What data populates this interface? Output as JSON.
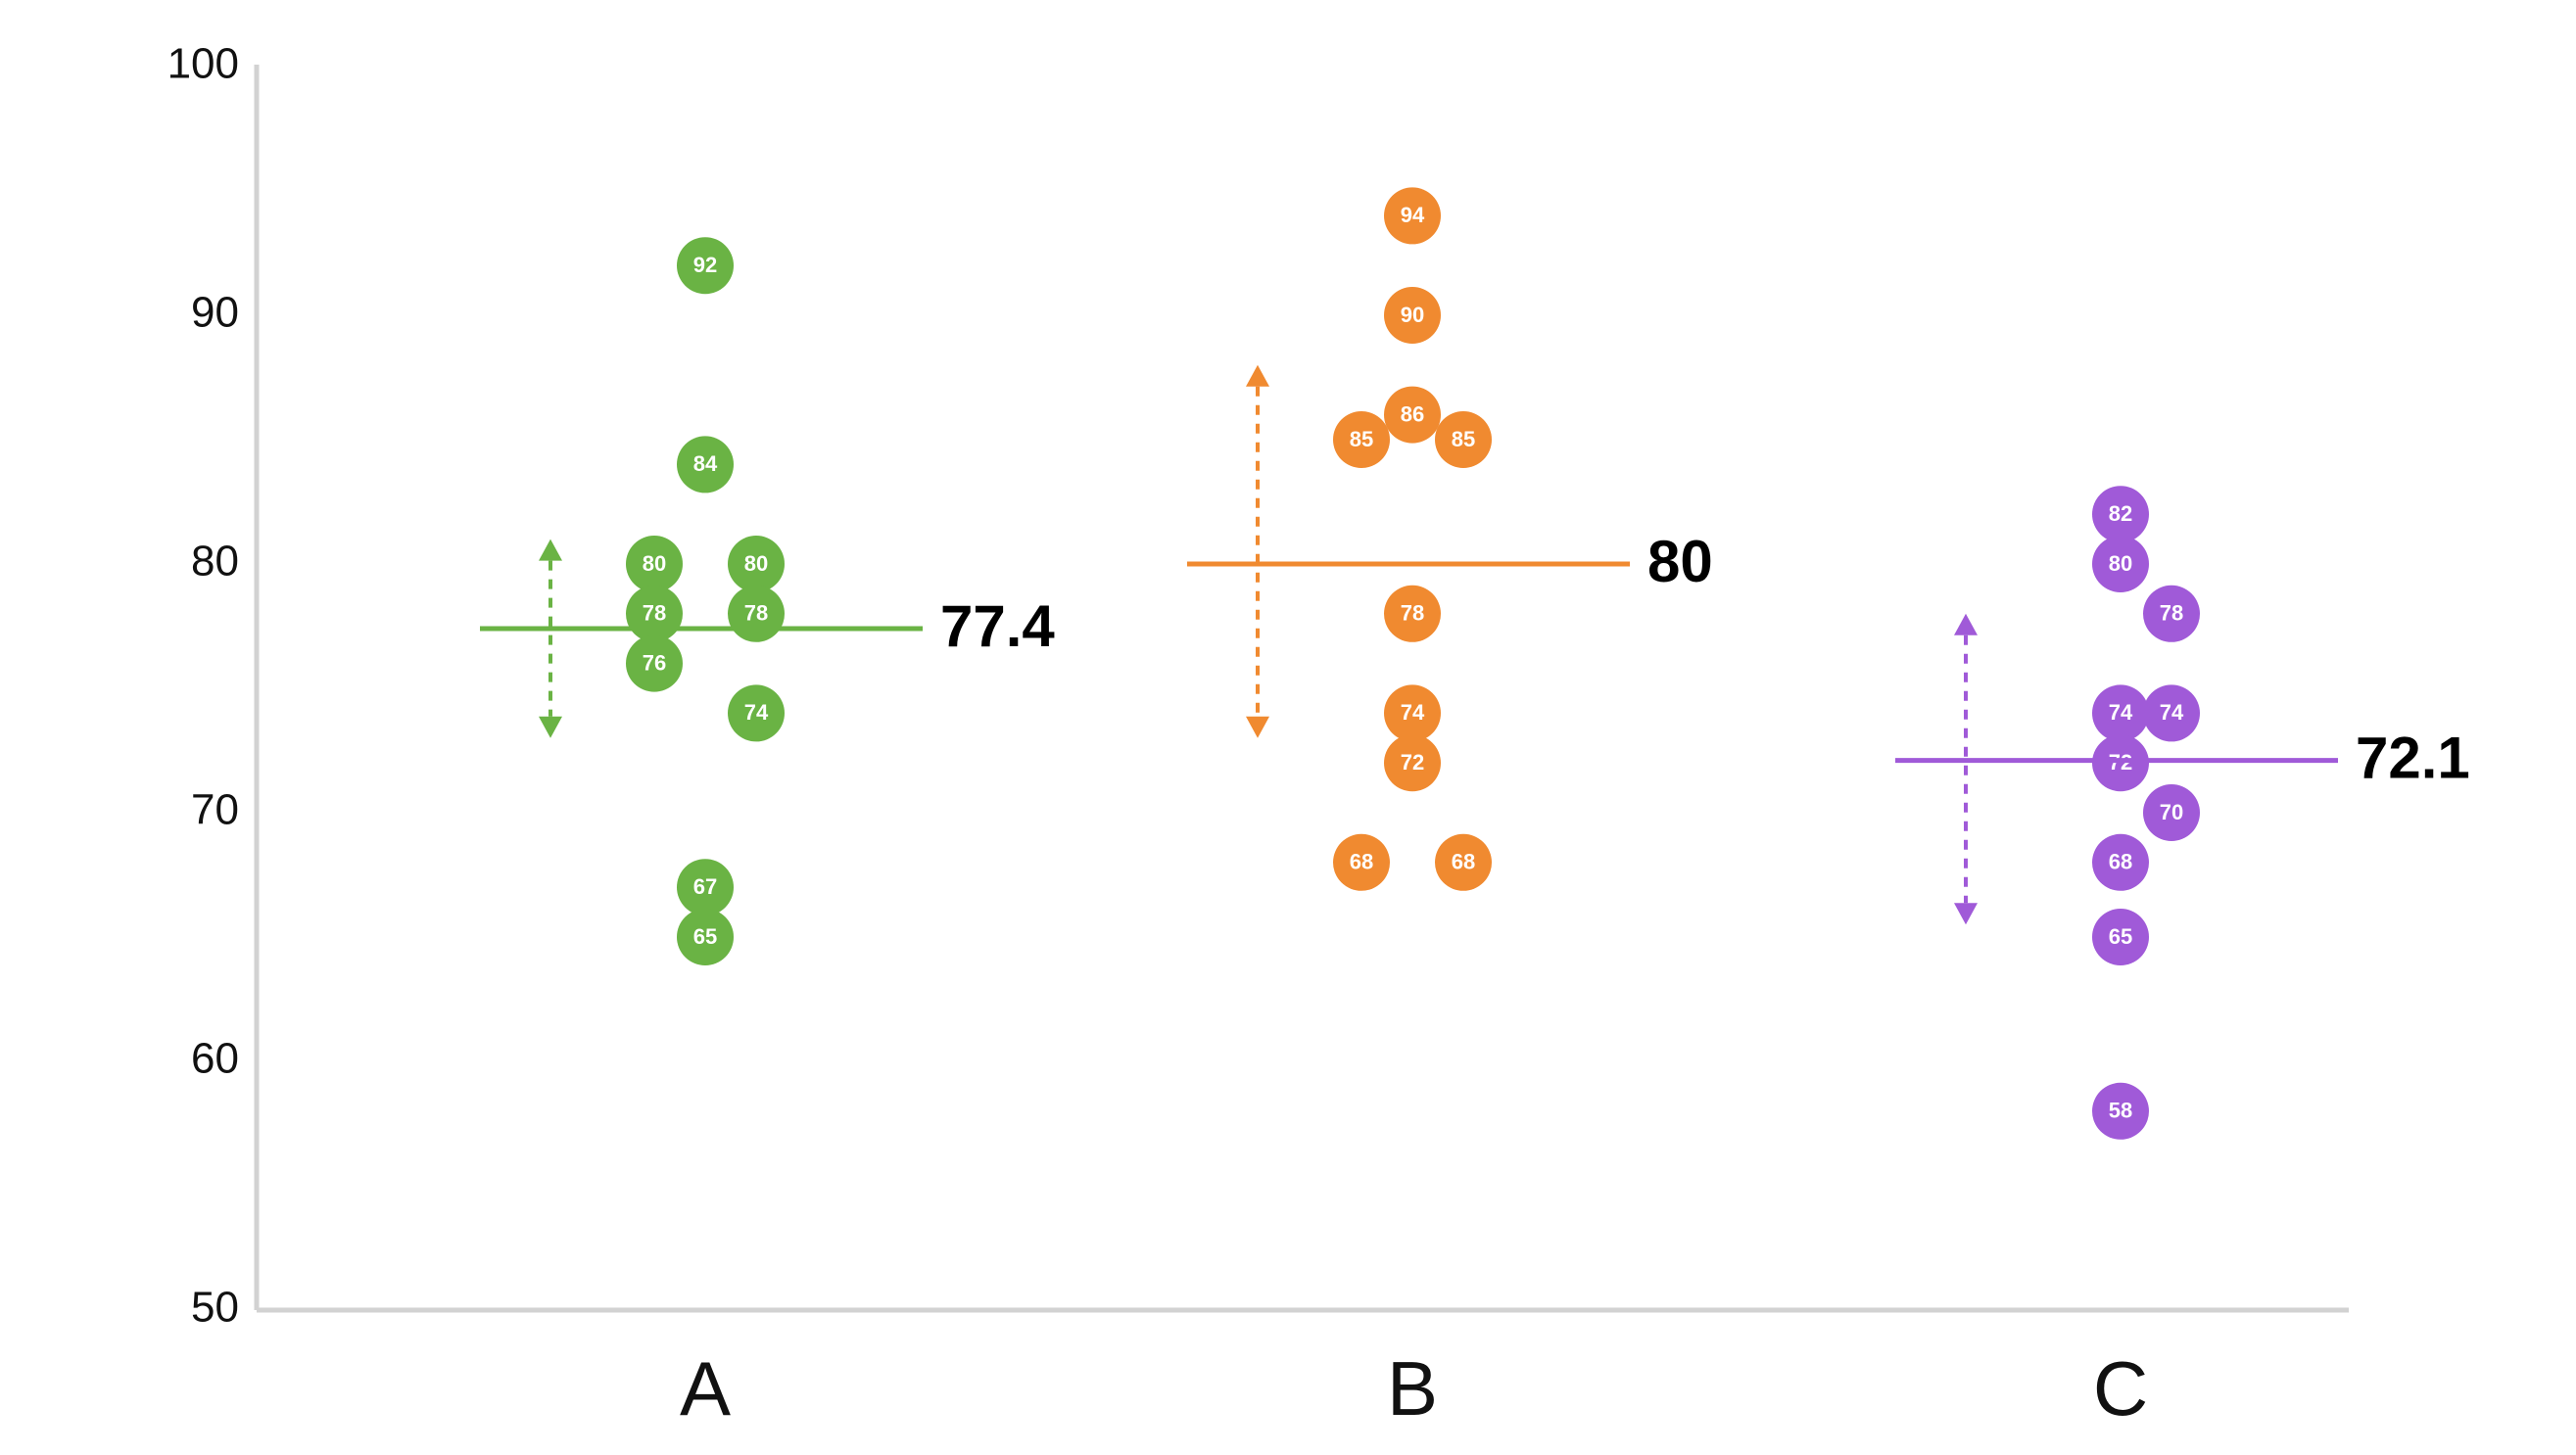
{
  "chart_data": {
    "type": "scatter",
    "title": "",
    "xlabel": "",
    "ylabel": "",
    "ylim": [
      50,
      100
    ],
    "yticks": [
      "50",
      "60",
      "70",
      "80",
      "90",
      "100"
    ],
    "categories": [
      "A",
      "B",
      "C"
    ],
    "grid": false,
    "series": [
      {
        "category": "A",
        "color": "#6ab344",
        "mean": 77.4,
        "mean_label": "77.4",
        "spread_range": [
          73,
          81
        ],
        "points": [
          {
            "value": 92,
            "label": "92",
            "col": 0
          },
          {
            "value": 84,
            "label": "84",
            "col": 0
          },
          {
            "value": 80,
            "label": "80",
            "col": -1
          },
          {
            "value": 80,
            "label": "80",
            "col": 1
          },
          {
            "value": 78,
            "label": "78",
            "col": -1
          },
          {
            "value": 78,
            "label": "78",
            "col": 1
          },
          {
            "value": 76,
            "label": "76",
            "col": -1
          },
          {
            "value": 74,
            "label": "74",
            "col": 1
          },
          {
            "value": 67,
            "label": "67",
            "col": 0
          },
          {
            "value": 65,
            "label": "65",
            "col": 0
          }
        ]
      },
      {
        "category": "B",
        "color": "#f08a30",
        "mean": 80,
        "mean_label": "80",
        "spread_range": [
          73,
          88
        ],
        "points": [
          {
            "value": 94,
            "label": "94",
            "col": 0
          },
          {
            "value": 90,
            "label": "90",
            "col": 0
          },
          {
            "value": 86,
            "label": "86",
            "col": 0
          },
          {
            "value": 85,
            "label": "85",
            "col": -1
          },
          {
            "value": 85,
            "label": "85",
            "col": 1
          },
          {
            "value": 78,
            "label": "78",
            "col": 0
          },
          {
            "value": 74,
            "label": "74",
            "col": 0
          },
          {
            "value": 72,
            "label": "72",
            "col": 0
          },
          {
            "value": 68,
            "label": "68",
            "col": -1
          },
          {
            "value": 68,
            "label": "68",
            "col": 1
          }
        ]
      },
      {
        "category": "C",
        "color": "#a05ad8",
        "mean": 72.1,
        "mean_label": "72.1",
        "spread_range": [
          65.5,
          78
        ],
        "points": [
          {
            "value": 82,
            "label": "82",
            "col": 0
          },
          {
            "value": 80,
            "label": "80",
            "col": 0
          },
          {
            "value": 78,
            "label": "78",
            "col": 1
          },
          {
            "value": 74,
            "label": "74",
            "col": 0
          },
          {
            "value": 74,
            "label": "74",
            "col": 1
          },
          {
            "value": 72,
            "label": "72",
            "col": 0
          },
          {
            "value": 70,
            "label": "70",
            "col": 1
          },
          {
            "value": 68,
            "label": "68",
            "col": 0
          },
          {
            "value": 65,
            "label": "65",
            "col": 0
          },
          {
            "value": 58,
            "label": "58",
            "col": 0
          }
        ]
      }
    ]
  }
}
